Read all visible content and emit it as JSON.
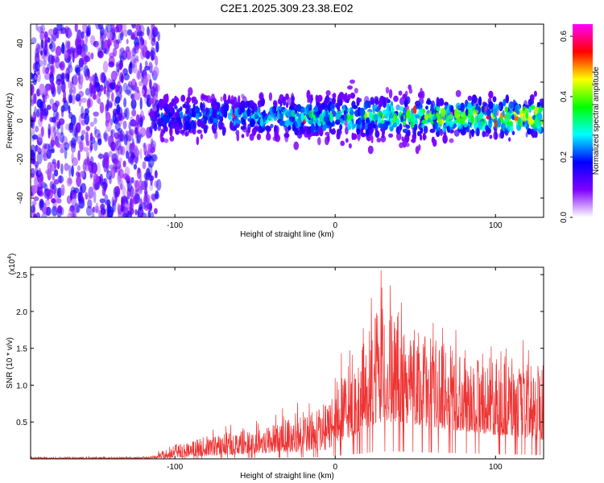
{
  "title": "C2E1.2025.309.23.38.E02",
  "chart_data": [
    {
      "type": "heatmap",
      "xlabel": "Height of straight line (km)",
      "ylabel": "Frequency (Hz)",
      "xlim": [
        -190,
        130
      ],
      "ylim": [
        -50,
        50
      ],
      "xticks": [
        -100,
        0,
        100
      ],
      "yticks": [
        -40,
        -20,
        0,
        20,
        40
      ],
      "colorbar": {
        "label": "Normalized spectral amplitude",
        "range": [
          0.0,
          0.64
        ],
        "ticks": [
          "0.0",
          "0.2",
          "0.4",
          "0.6"
        ],
        "colors": [
          "#ffffff",
          "#8000ff",
          "#0000ff",
          "#00ffff",
          "#00ff00",
          "#ffff00",
          "#ff0000",
          "#ff00ff"
        ]
      },
      "regions": [
        {
          "name": "noise-block",
          "x_range": [
            -190,
            -110
          ],
          "freq_range": [
            -50,
            50
          ],
          "amplitude": "0.05-0.15"
        },
        {
          "name": "signal-band",
          "x_range": [
            -110,
            130
          ],
          "freq_center": 2,
          "half_width_hz": 10,
          "amplitude": "0.1-0.6"
        }
      ]
    },
    {
      "type": "line",
      "color": "#ee3333",
      "xlabel": "Height of straight line (km)",
      "ylabel": "SNR (10 * v/v)",
      "yscale_label": "(x10",
      "yscale_exp": "4",
      "xlim": [
        -190,
        130
      ],
      "ylim": [
        0,
        2.6
      ],
      "xticks": [
        -100,
        0,
        100
      ],
      "yticks": [
        "0.5",
        "1.0",
        "1.5",
        "2.0",
        "2.5"
      ],
      "envelope": [
        {
          "x": -190,
          "base": 0.0,
          "max": 0.03
        },
        {
          "x": -115,
          "base": 0.0,
          "max": 0.04
        },
        {
          "x": -100,
          "base": 0.02,
          "max": 0.25
        },
        {
          "x": -80,
          "base": 0.04,
          "max": 0.4
        },
        {
          "x": -60,
          "base": 0.06,
          "max": 0.5
        },
        {
          "x": -40,
          "base": 0.08,
          "max": 0.6
        },
        {
          "x": -20,
          "base": 0.1,
          "max": 0.85
        },
        {
          "x": -5,
          "base": 0.12,
          "max": 0.95
        },
        {
          "x": 0,
          "base": 0.2,
          "max": 1.4
        },
        {
          "x": 10,
          "base": 0.3,
          "max": 1.5
        },
        {
          "x": 20,
          "base": 0.4,
          "max": 2.1
        },
        {
          "x": 28,
          "base": 0.5,
          "max": 2.6
        },
        {
          "x": 40,
          "base": 0.5,
          "max": 2.4
        },
        {
          "x": 55,
          "base": 0.45,
          "max": 2.1
        },
        {
          "x": 70,
          "base": 0.4,
          "max": 1.95
        },
        {
          "x": 90,
          "base": 0.35,
          "max": 1.8
        },
        {
          "x": 110,
          "base": 0.3,
          "max": 1.65
        },
        {
          "x": 130,
          "base": 0.25,
          "max": 1.55
        }
      ]
    }
  ]
}
